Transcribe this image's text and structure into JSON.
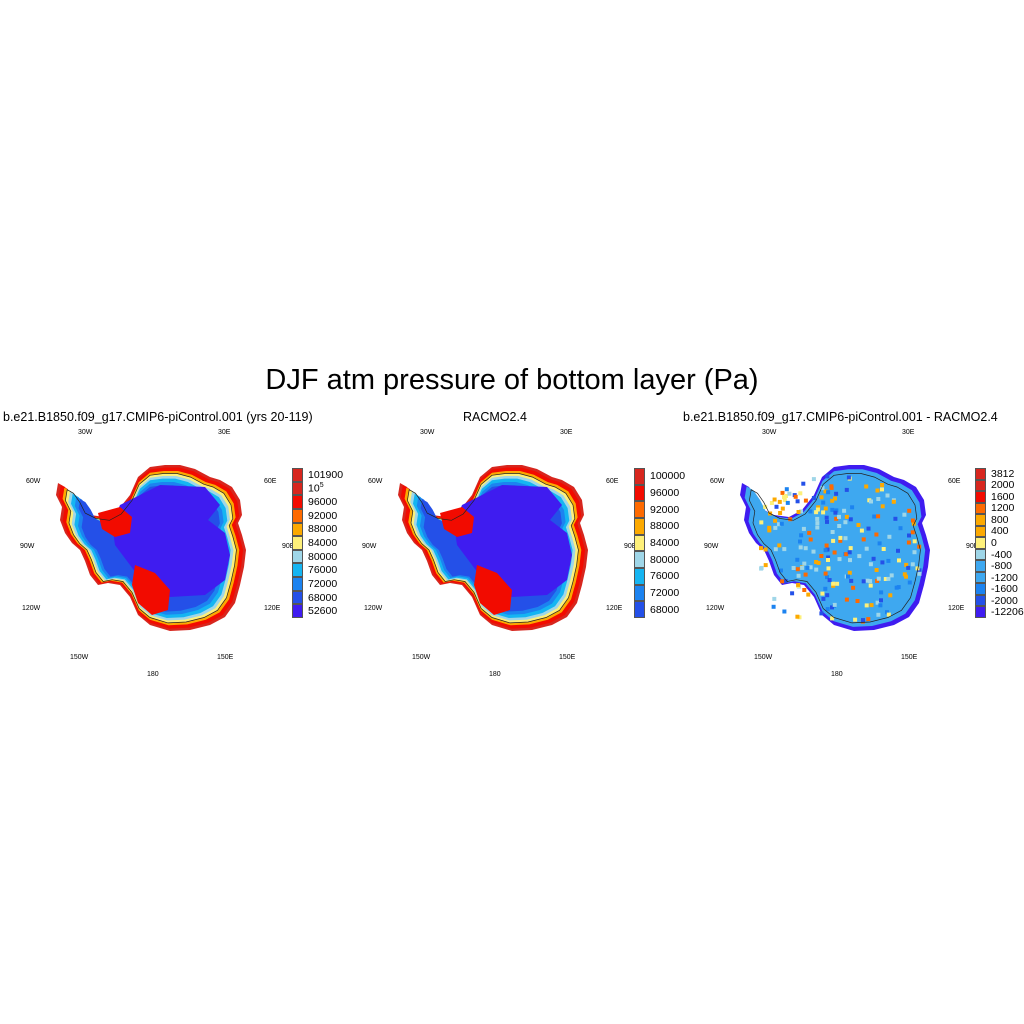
{
  "title": "DJF atm pressure of bottom layer (Pa)",
  "panels": [
    {
      "title": "b.e21.B1850.f09_g17.CMIP6-piControl.001 (yrs 20-119)",
      "kind": "field",
      "colorbar": {
        "colors": [
          "#d7261e",
          "#f20b00",
          "#fe6a00",
          "#fca900",
          "#fef07a",
          "#9fd6e8",
          "#15b5f2",
          "#1c83f0",
          "#2450e8",
          "#3f1cf0"
        ],
        "labels": [
          "101900",
          "10^5",
          "96000",
          "92000",
          "88000",
          "84000",
          "80000",
          "76000",
          "72000",
          "68000",
          "52600"
        ]
      }
    },
    {
      "title": "RACMO2.4",
      "kind": "field",
      "colorbar": {
        "colors": [
          "#d7261e",
          "#f20b00",
          "#fe6a00",
          "#fca900",
          "#fef07a",
          "#9fd6e8",
          "#15b5f2",
          "#1c83f0",
          "#2450e8",
          "#3f1cf0"
        ],
        "labels": [
          "100000",
          "96000",
          "92000",
          "88000",
          "84000",
          "80000",
          "76000",
          "72000",
          "68000"
        ]
      }
    },
    {
      "title": "b.e21.B1850.f09_g17.CMIP6-piControl.001 - RACMO2.4",
      "kind": "diff",
      "colorbar": {
        "colors": [
          "#d7261e",
          "#f20b00",
          "#fe6a00",
          "#fca900",
          "#fef07a",
          "#9fd6e8",
          "#3ea8f0",
          "#1c83f0",
          "#2450e8",
          "#3f1cf0"
        ],
        "labels": [
          "3812",
          "2000",
          "1600",
          "1200",
          "800",
          "400",
          "0",
          "-400",
          "-800",
          "-1200",
          "-1600",
          "-2000",
          "-12206"
        ]
      }
    }
  ],
  "longitude_labels": [
    "30W",
    "30E",
    "60W",
    "60E",
    "90W",
    "90E",
    "120W",
    "120E",
    "150W",
    "150E",
    "180"
  ],
  "colors": {
    "text": "#000000",
    "ice_interior": "#3f1cf0",
    "coast": "#f20b00"
  }
}
